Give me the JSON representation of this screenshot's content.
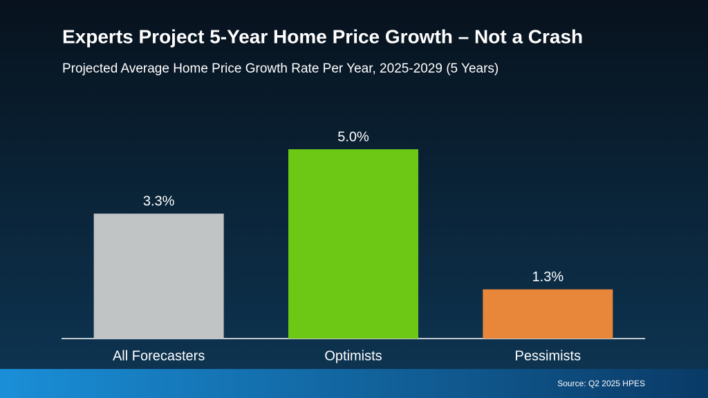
{
  "chart_data": {
    "type": "bar",
    "title": "Experts Project 5-Year Home Price Growth – Not a Crash",
    "subtitle": "Projected Average Home Price Growth Rate Per Year, 2025-2029 (5 Years)",
    "categories": [
      "All Forecasters",
      "Optimists",
      "Pessimists"
    ],
    "values": [
      3.3,
      5.0,
      1.3
    ],
    "value_labels": [
      "3.3%",
      "5.0%",
      "1.3%"
    ],
    "colors": [
      "#c1c4c5",
      "#6cc814",
      "#e8863a"
    ],
    "source": "Source: Q2 2025 HPES"
  }
}
